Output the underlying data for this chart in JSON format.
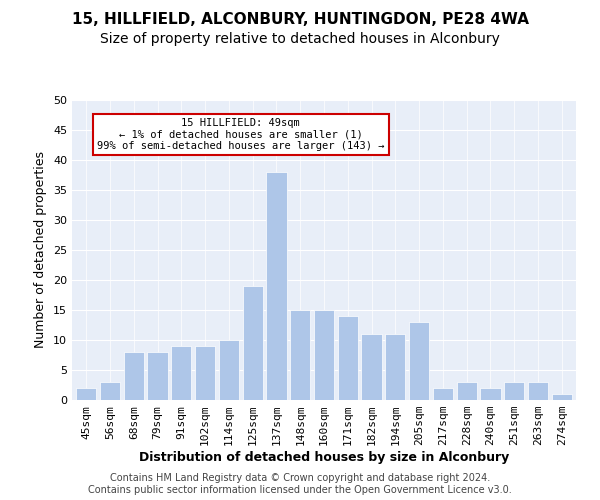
{
  "title1": "15, HILLFIELD, ALCONBURY, HUNTINGDON, PE28 4WA",
  "title2": "Size of property relative to detached houses in Alconbury",
  "xlabel": "Distribution of detached houses by size in Alconbury",
  "ylabel": "Number of detached properties",
  "categories": [
    "45sqm",
    "56sqm",
    "68sqm",
    "79sqm",
    "91sqm",
    "102sqm",
    "114sqm",
    "125sqm",
    "137sqm",
    "148sqm",
    "160sqm",
    "171sqm",
    "182sqm",
    "194sqm",
    "205sqm",
    "217sqm",
    "228sqm",
    "240sqm",
    "251sqm",
    "263sqm",
    "274sqm"
  ],
  "bar_values": [
    2,
    3,
    8,
    8,
    9,
    9,
    10,
    19,
    38,
    15,
    15,
    14,
    11,
    11,
    13,
    2,
    3,
    2,
    3,
    3,
    1
  ],
  "bar_color": "#aec6e8",
  "annotation_text": "15 HILLFIELD: 49sqm\n← 1% of detached houses are smaller (1)\n99% of semi-detached houses are larger (143) →",
  "annotation_edge": "#cc0000",
  "ylim": [
    0,
    50
  ],
  "yticks": [
    0,
    5,
    10,
    15,
    20,
    25,
    30,
    35,
    40,
    45,
    50
  ],
  "bg_color": "#e8eef8",
  "footer_line1": "Contains HM Land Registry data © Crown copyright and database right 2024.",
  "footer_line2": "Contains public sector information licensed under the Open Government Licence v3.0.",
  "title1_fontsize": 11,
  "title2_fontsize": 10,
  "xlabel_fontsize": 9,
  "ylabel_fontsize": 9,
  "tick_fontsize": 8,
  "footer_fontsize": 7
}
